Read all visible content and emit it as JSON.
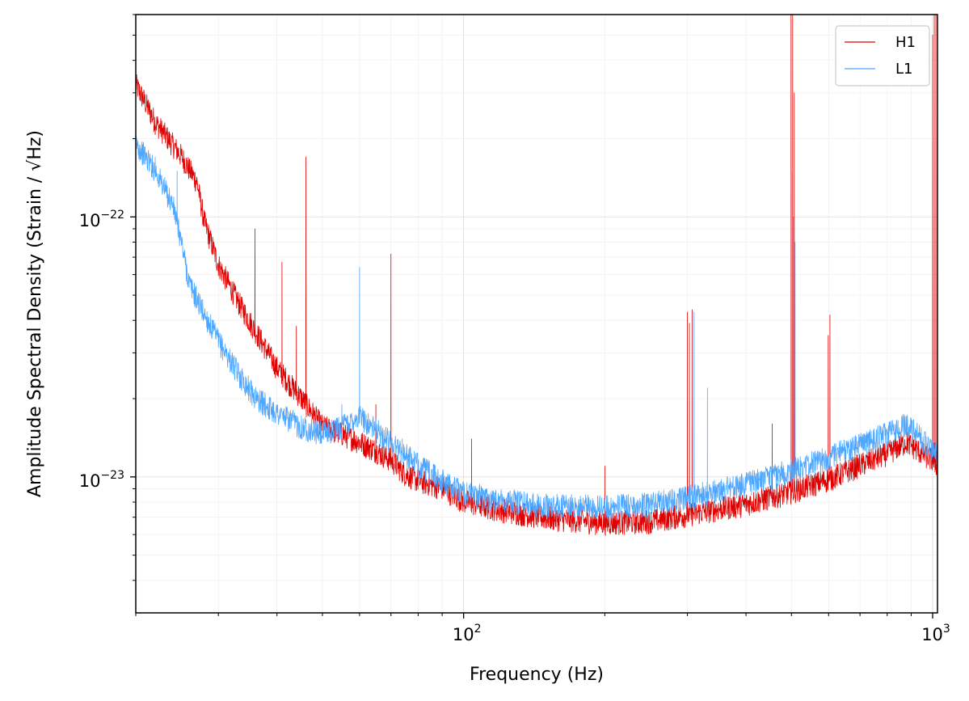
{
  "chart_data": {
    "type": "line",
    "title": "",
    "xlabel": "Frequency (Hz)",
    "ylabel": "Amplitude Spectral Density (Strain / √Hz)",
    "x_scale": "log",
    "y_scale": "log",
    "xlim": [
      20,
      1024
    ],
    "ylim": [
      3e-24,
      6e-22
    ],
    "grid": true,
    "legend_position": "top-right",
    "x_ticks": [
      {
        "value": 100,
        "base": "10",
        "exp": "2"
      },
      {
        "value": 1000,
        "base": "10",
        "exp": "3"
      }
    ],
    "y_ticks": [
      {
        "value": 1e-22,
        "base": "10",
        "exp": "−22"
      },
      {
        "value": 1e-23,
        "base": "10",
        "exp": "−23"
      }
    ],
    "series": [
      {
        "name": "H1",
        "color": "#e00000",
        "base": [
          [
            20,
            3.2e-22
          ],
          [
            22,
            2.3e-22
          ],
          [
            25,
            1.7e-22
          ],
          [
            27,
            1.35e-22
          ],
          [
            28,
            9.5e-23
          ],
          [
            30,
            6.5e-23
          ],
          [
            33,
            4.7e-23
          ],
          [
            36,
            3.6e-23
          ],
          [
            40,
            2.6e-23
          ],
          [
            45,
            2e-23
          ],
          [
            50,
            1.55e-23
          ],
          [
            55,
            1.45e-23
          ],
          [
            60,
            1.35e-23
          ],
          [
            65,
            1.25e-23
          ],
          [
            70,
            1.15e-23
          ],
          [
            75,
            1.02e-23
          ],
          [
            80,
            9.6e-24
          ],
          [
            90,
            9e-24
          ],
          [
            100,
            8e-24
          ],
          [
            120,
            7.4e-24
          ],
          [
            150,
            6.9e-24
          ],
          [
            200,
            6.6e-24
          ],
          [
            250,
            6.7e-24
          ],
          [
            300,
            7.1e-24
          ],
          [
            400,
            7.8e-24
          ],
          [
            500,
            8.7e-24
          ],
          [
            600,
            9.7e-24
          ],
          [
            700,
            1.1e-23
          ],
          [
            800,
            1.22e-23
          ],
          [
            880,
            1.35e-23
          ],
          [
            950,
            1.22e-23
          ],
          [
            1000,
            1.15e-23
          ],
          [
            1024,
            1.1e-23
          ]
        ],
        "peaks": [
          [
            35.9,
            9e-23
          ],
          [
            41,
            6.7e-23
          ],
          [
            46.1,
            1.7e-22
          ],
          [
            44,
            3.8e-23
          ],
          [
            65,
            1.9e-23
          ],
          [
            70,
            7.2e-23
          ],
          [
            104,
            1.4e-23
          ],
          [
            200,
            1.1e-23
          ],
          [
            300,
            4.3e-23
          ],
          [
            303,
            3.9e-23
          ],
          [
            307,
            4.4e-23
          ],
          [
            455,
            1.6e-23
          ],
          [
            499,
            6e-22
          ],
          [
            503,
            6e-22
          ],
          [
            507,
            3e-22
          ],
          [
            599,
            3.5e-23
          ],
          [
            604,
            4.2e-23
          ],
          [
            1000,
            5e-22
          ],
          [
            1008,
            6e-22
          ],
          [
            1016,
            6e-22
          ]
        ]
      },
      {
        "name": "L1",
        "color": "#4da6ff",
        "base": [
          [
            20,
            1.9e-22
          ],
          [
            22,
            1.5e-22
          ],
          [
            24,
            1.1e-22
          ],
          [
            25,
            8e-23
          ],
          [
            26,
            5.5e-23
          ],
          [
            28,
            4.2e-23
          ],
          [
            30,
            3.3e-23
          ],
          [
            33,
            2.5e-23
          ],
          [
            36,
            2e-23
          ],
          [
            40,
            1.75e-23
          ],
          [
            45,
            1.55e-23
          ],
          [
            50,
            1.45e-23
          ],
          [
            55,
            1.55e-23
          ],
          [
            60,
            1.7e-23
          ],
          [
            65,
            1.5e-23
          ],
          [
            70,
            1.35e-23
          ],
          [
            80,
            1.1e-23
          ],
          [
            90,
            9.6e-24
          ],
          [
            100,
            8.6e-24
          ],
          [
            120,
            8.1e-24
          ],
          [
            150,
            7.7e-24
          ],
          [
            200,
            7.6e-24
          ],
          [
            250,
            7.8e-24
          ],
          [
            300,
            8.3e-24
          ],
          [
            400,
            9.3e-24
          ],
          [
            500,
            1.05e-23
          ],
          [
            600,
            1.18e-23
          ],
          [
            700,
            1.32e-23
          ],
          [
            800,
            1.45e-23
          ],
          [
            880,
            1.58e-23
          ],
          [
            950,
            1.38e-23
          ],
          [
            1000,
            1.25e-23
          ],
          [
            1024,
            1.2e-23
          ]
        ],
        "peaks": [
          [
            24.5,
            1.5e-22
          ],
          [
            22,
            1.7e-22
          ],
          [
            60,
            6.4e-23
          ],
          [
            55,
            1.9e-23
          ],
          [
            74,
            1.4e-23
          ],
          [
            310,
            4.3e-23
          ],
          [
            331,
            2.2e-23
          ],
          [
            500,
            1.5e-22
          ],
          [
            505,
            1e-22
          ],
          [
            509,
            8e-23
          ]
        ]
      }
    ]
  }
}
